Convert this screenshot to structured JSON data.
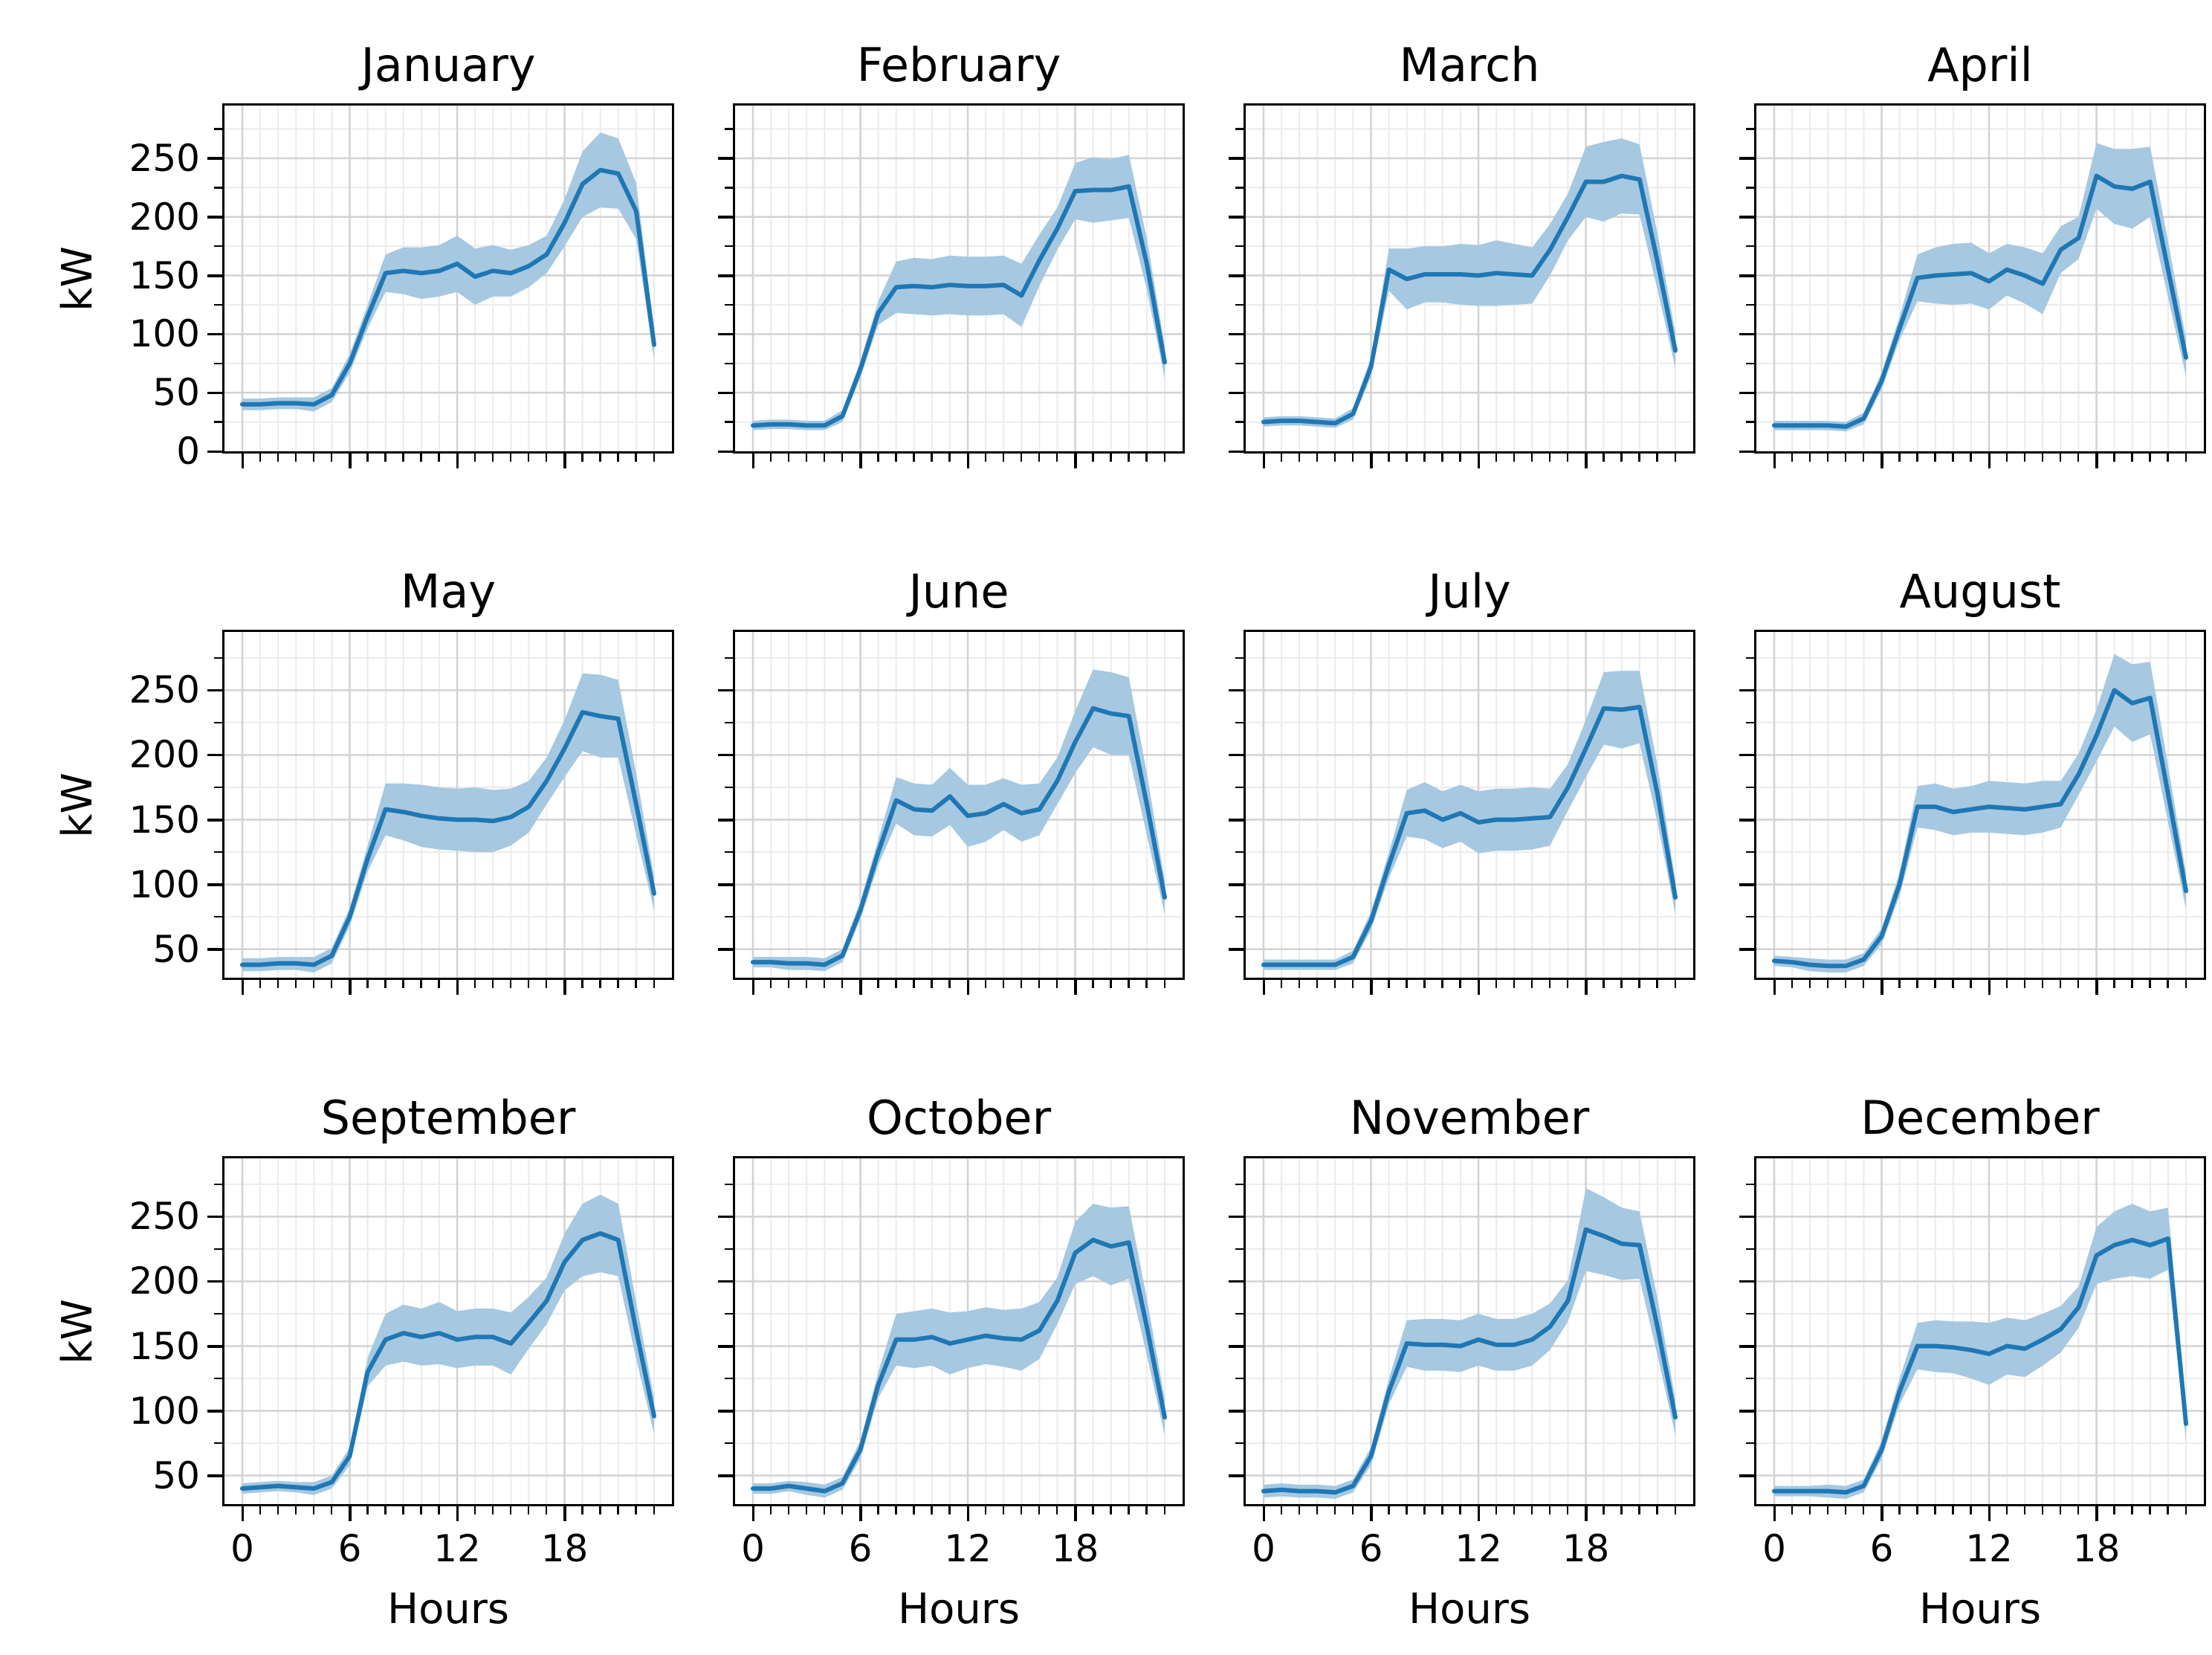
{
  "chart_data": {
    "type": "line",
    "title": "",
    "xlabel": "Hours",
    "ylabel": "kW",
    "x": [
      0,
      1,
      2,
      3,
      4,
      5,
      6,
      7,
      8,
      9,
      10,
      11,
      12,
      13,
      14,
      15,
      16,
      17,
      18,
      19,
      20,
      21,
      22,
      23
    ],
    "x_tick_labels": [
      "0",
      "6",
      "12",
      "18"
    ],
    "x_ticks": [
      0,
      6,
      12,
      18
    ],
    "grid": "both, major and minor",
    "legend_position": "none",
    "config": {
      "line_color": "#1f77b4",
      "band_color": "#a6c8e1",
      "grid_major_color": "#d2d2d2",
      "grid_minor_color": "#ebebeb",
      "y_tick_labels_row0": [
        "0",
        "50",
        "100",
        "150",
        "200",
        "250"
      ],
      "y_tick_labels_row12": [
        "50",
        "100",
        "150",
        "200",
        "250"
      ],
      "y_major_row0": [
        0,
        50,
        100,
        150,
        200,
        250
      ],
      "y_minor_row0": [
        25,
        75,
        125,
        175,
        225,
        275
      ],
      "y_major_row12": [
        50,
        100,
        150,
        200,
        250
      ],
      "y_minor_row12": [
        75,
        125,
        175,
        225,
        275
      ],
      "ylim_row0": [
        0,
        295
      ],
      "ylim_row12": [
        28,
        295
      ]
    },
    "months": [
      {
        "title": "January",
        "mean": [
          40,
          40,
          41,
          41,
          40,
          48,
          75,
          115,
          152,
          154,
          152,
          154,
          160,
          149,
          154,
          152,
          158,
          168,
          195,
          228,
          240,
          237,
          205,
          91
        ],
        "band": [
          5,
          5,
          5,
          5,
          6,
          6,
          8,
          10,
          16,
          20,
          22,
          22,
          24,
          24,
          22,
          20,
          18,
          16,
          20,
          28,
          32,
          30,
          24,
          13
        ]
      },
      {
        "title": "February",
        "mean": [
          22,
          23,
          23,
          22,
          22,
          30,
          70,
          118,
          140,
          141,
          140,
          142,
          141,
          141,
          142,
          133,
          163,
          190,
          222,
          223,
          223,
          226,
          160,
          76
        ],
        "band": [
          4,
          4,
          4,
          4,
          4,
          5,
          7,
          10,
          22,
          24,
          24,
          25,
          25,
          25,
          25,
          27,
          22,
          18,
          24,
          28,
          26,
          27,
          22,
          14
        ]
      },
      {
        "title": "March",
        "mean": [
          25,
          26,
          26,
          25,
          24,
          32,
          72,
          155,
          147,
          151,
          151,
          151,
          150,
          152,
          151,
          150,
          172,
          200,
          230,
          230,
          235,
          232,
          162,
          86
        ],
        "band": [
          4,
          4,
          4,
          4,
          4,
          5,
          8,
          18,
          26,
          24,
          24,
          26,
          26,
          28,
          26,
          24,
          22,
          20,
          30,
          34,
          32,
          30,
          24,
          15
        ]
      },
      {
        "title": "April",
        "mean": [
          22,
          22,
          22,
          22,
          21,
          28,
          60,
          105,
          148,
          150,
          151,
          152,
          145,
          155,
          150,
          143,
          172,
          182,
          235,
          226,
          224,
          230,
          155,
          80
        ],
        "band": [
          4,
          4,
          4,
          4,
          4,
          5,
          7,
          10,
          20,
          24,
          26,
          26,
          24,
          22,
          24,
          26,
          20,
          18,
          28,
          32,
          34,
          30,
          24,
          16
        ]
      },
      {
        "title": "May",
        "mean": [
          38,
          38,
          39,
          39,
          38,
          45,
          75,
          120,
          158,
          156,
          153,
          151,
          150,
          150,
          149,
          152,
          160,
          180,
          205,
          233,
          230,
          228,
          162,
          93
        ],
        "band": [
          5,
          5,
          5,
          5,
          6,
          6,
          7,
          10,
          20,
          22,
          24,
          24,
          24,
          25,
          24,
          22,
          20,
          18,
          22,
          30,
          32,
          30,
          24,
          13
        ]
      },
      {
        "title": "June",
        "mean": [
          40,
          40,
          39,
          39,
          38,
          45,
          80,
          125,
          165,
          158,
          157,
          168,
          153,
          155,
          162,
          155,
          158,
          180,
          210,
          236,
          232,
          230,
          162,
          90
        ],
        "band": [
          4,
          4,
          5,
          5,
          5,
          5,
          7,
          10,
          18,
          20,
          20,
          22,
          24,
          22,
          20,
          22,
          20,
          18,
          24,
          30,
          32,
          30,
          24,
          13
        ]
      },
      {
        "title": "July",
        "mean": [
          38,
          38,
          38,
          38,
          38,
          44,
          72,
          115,
          155,
          157,
          150,
          155,
          148,
          150,
          150,
          151,
          152,
          175,
          205,
          236,
          235,
          237,
          170,
          90
        ],
        "band": [
          4,
          4,
          4,
          4,
          4,
          5,
          7,
          10,
          18,
          22,
          22,
          22,
          24,
          24,
          24,
          24,
          22,
          18,
          22,
          28,
          30,
          28,
          22,
          13
        ]
      },
      {
        "title": "August",
        "mean": [
          41,
          40,
          38,
          37,
          37,
          42,
          60,
          100,
          160,
          160,
          156,
          158,
          160,
          159,
          158,
          160,
          162,
          185,
          215,
          250,
          240,
          244,
          170,
          95
        ],
        "band": [
          4,
          4,
          5,
          5,
          5,
          5,
          6,
          9,
          16,
          18,
          18,
          18,
          20,
          20,
          20,
          20,
          18,
          16,
          20,
          28,
          30,
          28,
          22,
          14
        ]
      },
      {
        "title": "September",
        "mean": [
          40,
          41,
          42,
          41,
          40,
          45,
          65,
          130,
          155,
          160,
          157,
          160,
          155,
          157,
          157,
          152,
          168,
          185,
          215,
          232,
          237,
          232,
          162,
          96
        ],
        "band": [
          4,
          4,
          4,
          4,
          5,
          5,
          7,
          11,
          20,
          22,
          22,
          24,
          22,
          22,
          22,
          24,
          20,
          18,
          22,
          28,
          30,
          28,
          22,
          14
        ]
      },
      {
        "title": "October",
        "mean": [
          40,
          40,
          42,
          40,
          38,
          44,
          70,
          120,
          155,
          155,
          157,
          152,
          155,
          158,
          156,
          155,
          162,
          185,
          222,
          232,
          227,
          230,
          165,
          95
        ],
        "band": [
          4,
          4,
          4,
          5,
          5,
          5,
          7,
          10,
          20,
          22,
          22,
          24,
          22,
          22,
          22,
          24,
          22,
          18,
          24,
          28,
          30,
          28,
          22,
          14
        ]
      },
      {
        "title": "November",
        "mean": [
          38,
          39,
          38,
          38,
          37,
          42,
          65,
          115,
          152,
          151,
          151,
          150,
          155,
          151,
          151,
          155,
          165,
          185,
          240,
          235,
          229,
          228,
          165,
          95
        ],
        "band": [
          5,
          5,
          5,
          5,
          5,
          5,
          7,
          10,
          18,
          20,
          20,
          20,
          20,
          20,
          20,
          20,
          18,
          16,
          32,
          30,
          28,
          26,
          22,
          14
        ]
      },
      {
        "title": "December",
        "mean": [
          38,
          38,
          38,
          38,
          37,
          42,
          70,
          115,
          150,
          150,
          149,
          147,
          144,
          150,
          148,
          155,
          163,
          180,
          220,
          228,
          232,
          228,
          233,
          90
        ],
        "band": [
          4,
          4,
          4,
          5,
          5,
          5,
          7,
          10,
          18,
          20,
          20,
          22,
          24,
          22,
          22,
          20,
          18,
          16,
          22,
          26,
          28,
          26,
          24,
          14
        ]
      }
    ]
  }
}
